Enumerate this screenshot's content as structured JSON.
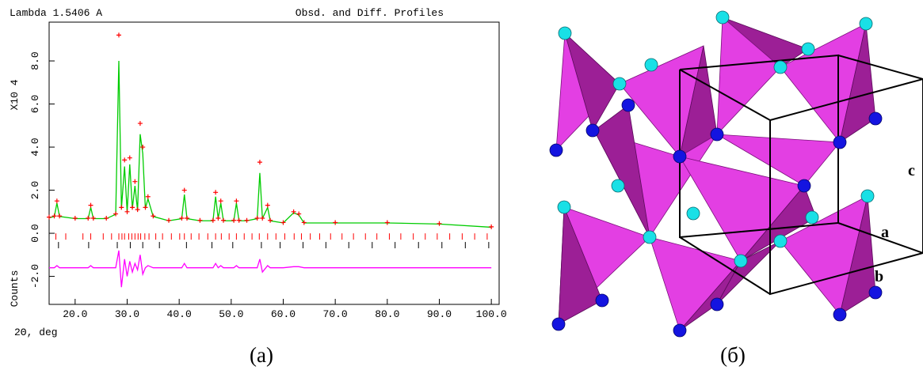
{
  "chart_data": {
    "type": "line",
    "title": "Obsd. and Diff. Profiles",
    "subtitle": "Lambda 1.5406 A",
    "y_label": "X10 4",
    "y_label_lower": "Counts",
    "x_label": "2Θ, deg",
    "xlim": [
      15,
      101.5
    ],
    "ylim": [
      -3.3,
      9.8
    ],
    "xticks": [
      {
        "value": 20,
        "label": "20.0"
      },
      {
        "value": 30,
        "label": "30.0"
      },
      {
        "value": 40,
        "label": "40.0"
      },
      {
        "value": 50,
        "label": "50.0"
      },
      {
        "value": 60,
        "label": "60.0"
      },
      {
        "value": 70,
        "label": "70.0"
      },
      {
        "value": 80,
        "label": "80.0"
      },
      {
        "value": 90,
        "label": "90.0"
      },
      {
        "value": 100,
        "label": "100.0"
      }
    ],
    "yticks": [
      {
        "value": -2,
        "label": "-2.0"
      },
      {
        "value": 0,
        "label": "0.0"
      },
      {
        "value": 2,
        "label": "2.0"
      },
      {
        "value": 4,
        "label": "4.0"
      },
      {
        "value": 6,
        "label": "6.0"
      },
      {
        "value": 8,
        "label": "8.0"
      }
    ],
    "x": [
      15,
      16,
      16.5,
      17,
      20,
      22.5,
      23,
      23.5,
      26,
      27.8,
      28.4,
      28.9,
      29.5,
      30,
      30.5,
      31,
      31.5,
      32,
      32.5,
      33,
      33.5,
      34,
      35,
      38,
      40.5,
      41,
      41.5,
      44,
      46.5,
      47,
      47.5,
      48,
      48.5,
      50.5,
      51,
      51.5,
      53,
      55,
      55.5,
      56,
      57,
      57.5,
      60,
      62,
      63,
      64,
      70,
      80,
      90,
      100
    ],
    "series": [
      {
        "color": "#ff0000",
        "mode": "markers",
        "values": [
          0.75,
          0.8,
          1.5,
          0.8,
          0.7,
          0.7,
          1.3,
          0.7,
          0.7,
          0.9,
          9.2,
          1.2,
          3.4,
          1.0,
          3.5,
          1.2,
          2.4,
          1.1,
          5.1,
          4.0,
          1.2,
          1.7,
          0.8,
          0.6,
          0.7,
          2.0,
          0.7,
          0.6,
          0.6,
          1.9,
          0.7,
          1.5,
          0.6,
          0.6,
          1.5,
          0.6,
          0.6,
          0.7,
          3.3,
          0.7,
          1.3,
          0.6,
          0.5,
          1.0,
          0.9,
          0.5,
          0.5,
          0.5,
          0.45,
          0.3
        ]
      },
      {
        "color": "#00cc00",
        "mode": "line",
        "values": [
          0.72,
          0.78,
          1.4,
          0.78,
          0.68,
          0.68,
          1.2,
          0.68,
          0.68,
          0.88,
          8.0,
          1.15,
          3.1,
          0.98,
          3.2,
          1.15,
          2.2,
          1.05,
          4.6,
          3.7,
          1.15,
          1.6,
          0.78,
          0.58,
          0.68,
          1.8,
          0.68,
          0.58,
          0.58,
          1.7,
          0.68,
          1.4,
          0.58,
          0.58,
          1.4,
          0.58,
          0.58,
          0.68,
          2.8,
          0.68,
          1.2,
          0.58,
          0.48,
          0.95,
          0.85,
          0.48,
          0.48,
          0.48,
          0.43,
          0.28
        ]
      },
      {
        "color": "#ff00ff",
        "mode": "line",
        "values": [
          -1.6,
          -1.6,
          -1.5,
          -1.6,
          -1.6,
          -1.6,
          -1.5,
          -1.6,
          -1.6,
          -1.6,
          -0.8,
          -2.5,
          -1.2,
          -2.0,
          -1.3,
          -1.8,
          -1.4,
          -1.7,
          -1.0,
          -1.9,
          -1.6,
          -1.5,
          -1.6,
          -1.6,
          -1.6,
          -1.4,
          -1.6,
          -1.6,
          -1.6,
          -1.4,
          -1.6,
          -1.5,
          -1.6,
          -1.6,
          -1.5,
          -1.6,
          -1.6,
          -1.6,
          -1.2,
          -1.8,
          -1.5,
          -1.6,
          -1.6,
          -1.55,
          -1.55,
          -1.6,
          -1.6,
          -1.6,
          -1.6,
          -1.6
        ]
      }
    ],
    "reflections": [
      {
        "color": "#ff0000",
        "positions": [
          16.3,
          18.2,
          21.5,
          23.0,
          25.4,
          27.0,
          28.4,
          29.0,
          29.5,
          30.3,
          30.9,
          31.5,
          32.1,
          32.6,
          33.4,
          34.2,
          35.5,
          36.8,
          38.5,
          40.1,
          41.0,
          42.3,
          43.8,
          45.5,
          47.0,
          48.1,
          49.6,
          51.0,
          52.5,
          54.0,
          55.4,
          57.0,
          58.6,
          60.3,
          62.1,
          63.5,
          65.2,
          67.0,
          69.1,
          71.3,
          73.5,
          75.8,
          78.0,
          80.4,
          82.6,
          85.0,
          87.3,
          89.6,
          92.0,
          94.4,
          96.8,
          99.2
        ]
      },
      {
        "color": "#000000",
        "positions": [
          16.8,
          22.6,
          28.1,
          30.6,
          33.0,
          36.2,
          41.4,
          46.3,
          50.3,
          55.8,
          59.4,
          63.8,
          68.2,
          72.6,
          77.1,
          81.5,
          86.0,
          90.5,
          95.0,
          99.5
        ]
      }
    ]
  },
  "structure": {
    "axis_labels": [
      "c",
      "a",
      "b"
    ]
  },
  "captions": [
    "(a)",
    "(б)"
  ]
}
